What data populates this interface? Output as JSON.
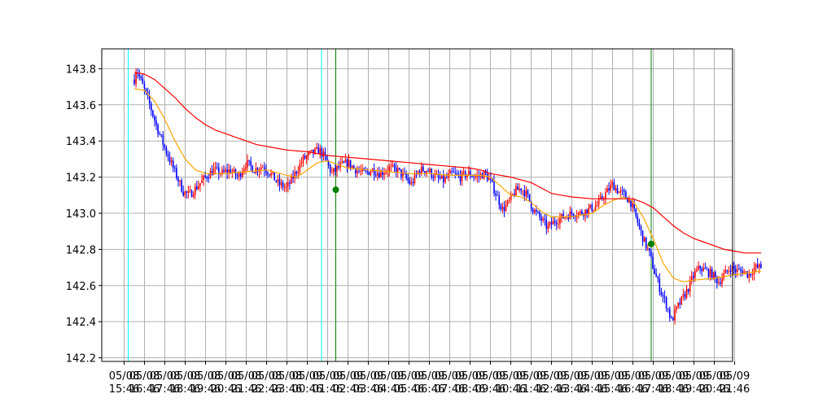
{
  "chart_data": {
    "type": "candlestick",
    "title": "",
    "xlabel": "",
    "ylabel": "",
    "ylim": [
      142.18,
      143.91
    ],
    "grid": true,
    "y_ticks": [
      142.2,
      142.4,
      142.6,
      142.8,
      143.0,
      143.2,
      143.4,
      143.6,
      143.8
    ],
    "x_ticks": [
      {
        "line1": "05/08",
        "line2": "15:46"
      },
      {
        "line1": "05/08",
        "line2": "16:46"
      },
      {
        "line1": "05/08",
        "line2": "17:46"
      },
      {
        "line1": "05/08",
        "line2": "18:46"
      },
      {
        "line1": "05/08",
        "line2": "19:46"
      },
      {
        "line1": "05/08",
        "line2": "20:46"
      },
      {
        "line1": "05/08",
        "line2": "21:46"
      },
      {
        "line1": "05/08",
        "line2": "22:46"
      },
      {
        "line1": "05/08",
        "line2": "23:46"
      },
      {
        "line1": "05/09",
        "line2": "00:46"
      },
      {
        "line1": "05/09",
        "line2": "01:46"
      },
      {
        "line1": "05/09",
        "line2": "02:46"
      },
      {
        "line1": "05/09",
        "line2": "03:46"
      },
      {
        "line1": "05/09",
        "line2": "04:46"
      },
      {
        "line1": "05/09",
        "line2": "05:46"
      },
      {
        "line1": "05/09",
        "line2": "06:46"
      },
      {
        "line1": "05/09",
        "line2": "07:46"
      },
      {
        "line1": "05/09",
        "line2": "08:46"
      },
      {
        "line1": "05/09",
        "line2": "09:46"
      },
      {
        "line1": "05/09",
        "line2": "10:46"
      },
      {
        "line1": "05/09",
        "line2": "11:46"
      },
      {
        "line1": "05/09",
        "line2": "12:46"
      },
      {
        "line1": "05/09",
        "line2": "13:46"
      },
      {
        "line1": "05/09",
        "line2": "14:46"
      },
      {
        "line1": "05/09",
        "line2": "15:46"
      },
      {
        "line1": "05/09",
        "line2": "16:46"
      },
      {
        "line1": "05/09",
        "line2": "17:46"
      },
      {
        "line1": "05/09",
        "line2": "18:46"
      },
      {
        "line1": "05/09",
        "line2": "19:46"
      },
      {
        "line1": "05/09",
        "line2": "20:46"
      },
      {
        "line1": "05/09",
        "line2": "21:46"
      }
    ],
    "x_range_hours": [
      -1.1,
      29.9
    ],
    "price_path": [
      [
        0.5,
        143.74
      ],
      [
        0.6,
        143.8
      ],
      [
        0.8,
        143.74
      ],
      [
        1.0,
        143.68
      ],
      [
        1.2,
        143.62
      ],
      [
        1.4,
        143.55
      ],
      [
        1.6,
        143.48
      ],
      [
        1.8,
        143.42
      ],
      [
        2.0,
        143.36
      ],
      [
        2.3,
        143.28
      ],
      [
        2.6,
        143.2
      ],
      [
        2.9,
        143.12
      ],
      [
        3.2,
        143.1
      ],
      [
        3.6,
        143.15
      ],
      [
        4.0,
        143.2
      ],
      [
        4.4,
        143.24
      ],
      [
        4.8,
        143.22
      ],
      [
        5.2,
        143.24
      ],
      [
        5.6,
        143.2
      ],
      [
        6.0,
        143.28
      ],
      [
        6.4,
        143.24
      ],
      [
        6.8,
        143.26
      ],
      [
        7.2,
        143.22
      ],
      [
        7.6,
        143.16
      ],
      [
        8.0,
        143.14
      ],
      [
        8.4,
        143.22
      ],
      [
        8.8,
        143.3
      ],
      [
        9.2,
        143.33
      ],
      [
        9.6,
        143.35
      ],
      [
        9.9,
        143.3
      ],
      [
        10.2,
        143.22
      ],
      [
        10.6,
        143.26
      ],
      [
        11.0,
        143.28
      ],
      [
        11.4,
        143.24
      ],
      [
        11.8,
        143.22
      ],
      [
        12.2,
        143.24
      ],
      [
        12.6,
        143.22
      ],
      [
        13.0,
        143.25
      ],
      [
        13.4,
        143.24
      ],
      [
        13.8,
        143.2
      ],
      [
        14.1,
        143.16
      ],
      [
        14.5,
        143.24
      ],
      [
        14.9,
        143.24
      ],
      [
        15.3,
        143.2
      ],
      [
        15.7,
        143.18
      ],
      [
        16.1,
        143.22
      ],
      [
        16.5,
        143.2
      ],
      [
        16.9,
        143.22
      ],
      [
        17.3,
        143.2
      ],
      [
        17.7,
        143.22
      ],
      [
        18.0,
        143.18
      ],
      [
        18.3,
        143.1
      ],
      [
        18.6,
        143.02
      ],
      [
        18.9,
        143.06
      ],
      [
        19.2,
        143.12
      ],
      [
        19.5,
        143.14
      ],
      [
        19.8,
        143.1
      ],
      [
        20.1,
        143.02
      ],
      [
        20.4,
        142.98
      ],
      [
        20.8,
        142.92
      ],
      [
        21.2,
        142.96
      ],
      [
        21.6,
        142.98
      ],
      [
        22.0,
        143.0
      ],
      [
        22.4,
        143.0
      ],
      [
        22.8,
        143.02
      ],
      [
        23.2,
        143.04
      ],
      [
        23.6,
        143.1
      ],
      [
        24.0,
        143.16
      ],
      [
        24.3,
        143.12
      ],
      [
        24.6,
        143.1
      ],
      [
        24.9,
        143.06
      ],
      [
        25.2,
        142.96
      ],
      [
        25.5,
        142.86
      ],
      [
        25.8,
        142.78
      ],
      [
        26.1,
        142.66
      ],
      [
        26.4,
        142.56
      ],
      [
        26.7,
        142.48
      ],
      [
        26.9,
        142.4
      ],
      [
        27.1,
        142.46
      ],
      [
        27.4,
        142.52
      ],
      [
        27.7,
        142.58
      ],
      [
        28.0,
        142.66
      ],
      [
        28.3,
        142.7
      ],
      [
        28.6,
        142.68
      ],
      [
        28.9,
        142.66
      ],
      [
        29.2,
        142.62
      ],
      [
        29.5,
        142.66
      ],
      [
        29.8,
        142.7
      ],
      [
        30.1,
        142.68
      ],
      [
        30.4,
        142.68
      ],
      [
        30.7,
        142.66
      ],
      [
        31.0,
        142.7
      ],
      [
        31.3,
        142.7
      ]
    ],
    "moving_average_fast": {
      "color": "#ffa500",
      "points": [
        [
          0.5,
          143.69
        ],
        [
          1.0,
          143.68
        ],
        [
          1.5,
          143.62
        ],
        [
          2.0,
          143.52
        ],
        [
          2.5,
          143.4
        ],
        [
          3.0,
          143.3
        ],
        [
          3.5,
          143.24
        ],
        [
          4.0,
          143.22
        ],
        [
          5.0,
          143.22
        ],
        [
          6.0,
          143.23
        ],
        [
          7.0,
          143.24
        ],
        [
          8.0,
          143.21
        ],
        [
          8.5,
          143.2
        ],
        [
          9.0,
          143.24
        ],
        [
          9.5,
          143.28
        ],
        [
          10.0,
          143.29
        ],
        [
          10.5,
          143.27
        ],
        [
          11.0,
          143.25
        ],
        [
          12.0,
          143.24
        ],
        [
          13.0,
          143.23
        ],
        [
          14.0,
          143.22
        ],
        [
          15.0,
          143.22
        ],
        [
          16.0,
          143.21
        ],
        [
          17.0,
          143.21
        ],
        [
          17.5,
          143.21
        ],
        [
          18.0,
          143.2
        ],
        [
          18.5,
          143.15
        ],
        [
          19.0,
          143.1
        ],
        [
          19.5,
          143.09
        ],
        [
          20.0,
          143.06
        ],
        [
          20.5,
          143.01
        ],
        [
          21.0,
          142.98
        ],
        [
          22.0,
          142.98
        ],
        [
          23.0,
          143.0
        ],
        [
          23.5,
          143.04
        ],
        [
          24.0,
          143.07
        ],
        [
          24.5,
          143.09
        ],
        [
          25.0,
          143.07
        ],
        [
          25.5,
          142.98
        ],
        [
          26.0,
          142.86
        ],
        [
          26.5,
          142.72
        ],
        [
          27.0,
          142.64
        ],
        [
          27.5,
          142.62
        ],
        [
          28.0,
          142.63
        ],
        [
          29.0,
          142.64
        ],
        [
          30.0,
          142.66
        ],
        [
          31.3,
          142.68
        ]
      ]
    },
    "moving_average_slow": {
      "color": "#ff0000",
      "points": [
        [
          0.5,
          143.78
        ],
        [
          1.0,
          143.77
        ],
        [
          1.5,
          143.74
        ],
        [
          2.0,
          143.69
        ],
        [
          2.5,
          143.64
        ],
        [
          3.0,
          143.58
        ],
        [
          3.5,
          143.53
        ],
        [
          4.0,
          143.49
        ],
        [
          4.5,
          143.46
        ],
        [
          5.0,
          143.44
        ],
        [
          5.5,
          143.42
        ],
        [
          6.0,
          143.4
        ],
        [
          6.5,
          143.38
        ],
        [
          7.0,
          143.37
        ],
        [
          7.5,
          143.36
        ],
        [
          8.0,
          143.35
        ],
        [
          9.0,
          143.34
        ],
        [
          10.0,
          143.32
        ],
        [
          11.0,
          143.31
        ],
        [
          12.0,
          143.3
        ],
        [
          13.0,
          143.29
        ],
        [
          14.0,
          143.28
        ],
        [
          15.0,
          143.27
        ],
        [
          16.0,
          143.26
        ],
        [
          17.0,
          143.25
        ],
        [
          17.5,
          143.24
        ],
        [
          18.0,
          143.22
        ],
        [
          19.0,
          143.2
        ],
        [
          20.0,
          143.17
        ],
        [
          20.5,
          143.14
        ],
        [
          21.0,
          143.11
        ],
        [
          21.5,
          143.1
        ],
        [
          22.0,
          143.09
        ],
        [
          23.0,
          143.08
        ],
        [
          24.0,
          143.08
        ],
        [
          25.0,
          143.08
        ],
        [
          25.5,
          143.06
        ],
        [
          26.0,
          143.03
        ],
        [
          26.5,
          142.98
        ],
        [
          27.0,
          142.93
        ],
        [
          27.5,
          142.89
        ],
        [
          28.0,
          142.86
        ],
        [
          28.5,
          142.84
        ],
        [
          29.0,
          142.82
        ],
        [
          29.5,
          142.8
        ],
        [
          30.0,
          142.79
        ],
        [
          30.5,
          142.78
        ],
        [
          31.3,
          142.78
        ]
      ]
    },
    "vertical_markers": [
      {
        "x": 0.2,
        "color": "#00ffff"
      },
      {
        "x": 9.7,
        "color": "#00ffff"
      },
      {
        "x": 10.4,
        "color": "#008000"
      },
      {
        "x": 25.9,
        "color": "#008000"
      }
    ],
    "signal_points": [
      {
        "x": 10.4,
        "y": 143.13,
        "color": "#008000"
      },
      {
        "x": 25.9,
        "y": 142.83,
        "color": "#008000"
      }
    ],
    "candle_colors": {
      "up": "#ff0000",
      "down": "#0000ff"
    }
  }
}
